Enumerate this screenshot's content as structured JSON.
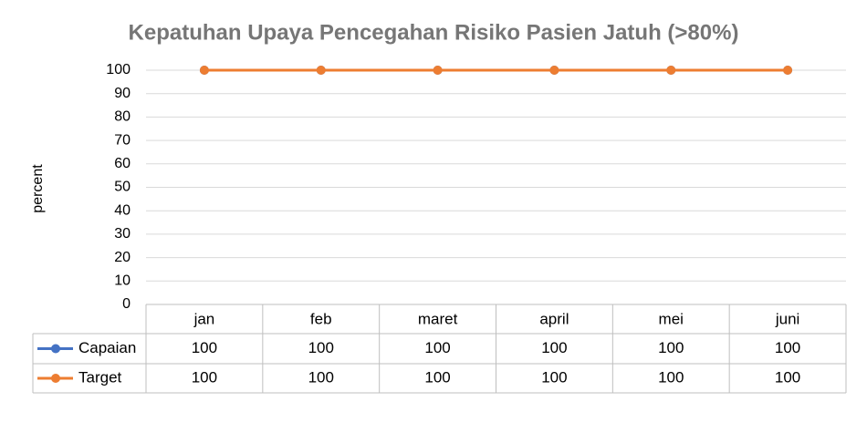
{
  "chart_data": {
    "type": "line",
    "title": "Kepatuhan Upaya Pencegahan Risiko Pasien Jatuh (>80%)",
    "y_label": "percent",
    "categories": [
      "jan",
      "feb",
      "maret",
      "april",
      "mei",
      "juni"
    ],
    "series": [
      {
        "name": "Capaian",
        "color": "#4472c4",
        "values": [
          100,
          100,
          100,
          100,
          100,
          100
        ]
      },
      {
        "name": "Target",
        "color": "#ed7d31",
        "values": [
          100,
          100,
          100,
          100,
          100,
          100
        ]
      }
    ],
    "ylim": [
      0,
      100
    ],
    "yticks": [
      0,
      10,
      20,
      30,
      40,
      50,
      60,
      70,
      80,
      90,
      100
    ],
    "grid": true,
    "data_table": true
  }
}
